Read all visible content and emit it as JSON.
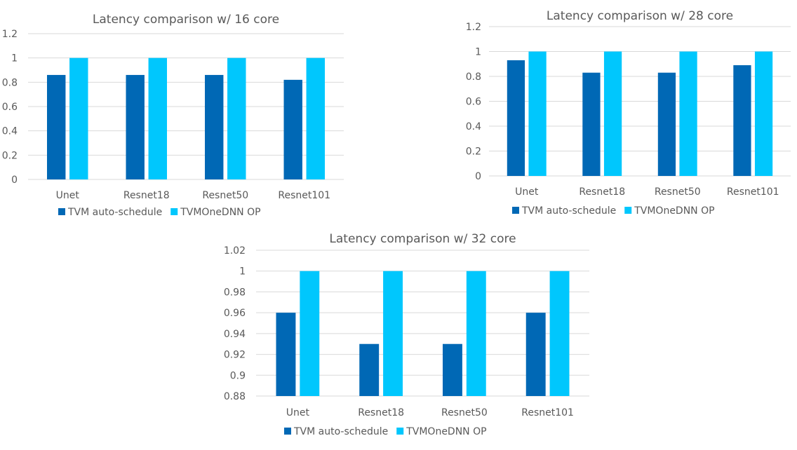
{
  "colors": {
    "tvm": "#0068b5",
    "onednn": "#00c7fd",
    "grid": "#d9d9d9",
    "text": "#595959"
  },
  "chart_data": [
    {
      "type": "bar",
      "title": "Latency comparison w/ 16 core",
      "categories": [
        "Unet",
        "Resnet18",
        "Resnet50",
        "Resnet101"
      ],
      "series": [
        {
          "name": "TVM auto-schedule",
          "values": [
            0.86,
            0.86,
            0.86,
            0.82
          ]
        },
        {
          "name": "TVMOneDNN OP",
          "values": [
            1,
            1,
            1,
            1
          ]
        }
      ],
      "ylim": [
        0,
        1.2
      ],
      "yticks": [
        "0",
        "0.2",
        "0.4",
        "0.6",
        "0.8",
        "1",
        "1.2"
      ],
      "grid": true,
      "legend": "bottom"
    },
    {
      "type": "bar",
      "title": "Latency comparison w/ 28 core",
      "categories": [
        "Unet",
        "Resnet18",
        "Resnet50",
        "Resnet101"
      ],
      "series": [
        {
          "name": "TVM auto-schedule",
          "values": [
            0.93,
            0.83,
            0.83,
            0.89
          ]
        },
        {
          "name": "TVMOneDNN OP",
          "values": [
            1,
            1,
            1,
            1
          ]
        }
      ],
      "ylim": [
        0,
        1.2
      ],
      "yticks": [
        "0",
        "0.2",
        "0.4",
        "0.6",
        "0.8",
        "1",
        "1.2"
      ],
      "grid": true,
      "legend": "bottom"
    },
    {
      "type": "bar",
      "title": "Latency comparison w/ 32 core",
      "categories": [
        "Unet",
        "Resnet18",
        "Resnet50",
        "Resnet101"
      ],
      "series": [
        {
          "name": "TVM auto-schedule",
          "values": [
            0.96,
            0.93,
            0.93,
            0.96
          ]
        },
        {
          "name": "TVMOneDNN OP",
          "values": [
            1,
            1,
            1,
            1
          ]
        }
      ],
      "ylim": [
        0.88,
        1.02
      ],
      "yticks": [
        "0.88",
        "0.9",
        "0.92",
        "0.94",
        "0.96",
        "0.98",
        "1",
        "1.02"
      ],
      "grid": true,
      "legend": "bottom"
    }
  ]
}
